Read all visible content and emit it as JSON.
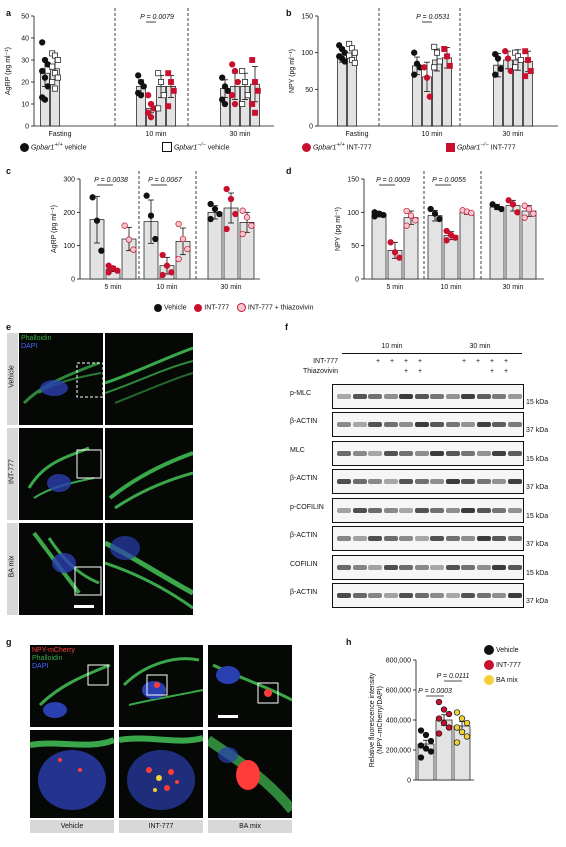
{
  "panels": {
    "a": {
      "label": "a"
    },
    "b": {
      "label": "b"
    },
    "c": {
      "label": "c"
    },
    "d": {
      "label": "d"
    },
    "e": {
      "label": "e"
    },
    "f": {
      "label": "f"
    },
    "g": {
      "label": "g"
    },
    "h": {
      "label": "h"
    }
  },
  "chart_data": [
    {
      "id": "a",
      "type": "bar",
      "ylabel": "AgRP (pg ml⁻¹)",
      "ylim": [
        0,
        50
      ],
      "yticks": [
        0,
        10,
        20,
        30,
        40,
        50
      ],
      "groups": [
        "Fasting",
        "10 min",
        "30 min"
      ],
      "series_names": [
        "Gpbar1+/+ vehicle",
        "Gpbar1−/− vehicle",
        "Gpbar1+/+ INT-777",
        "Gpbar1−/− INT-777"
      ],
      "bars": [
        {
          "g": 0,
          "s": 0,
          "v": 24,
          "err": 6,
          "pts": [
            38,
            30,
            28,
            25,
            22,
            18,
            13,
            12
          ]
        },
        {
          "g": 0,
          "s": 1,
          "v": 26,
          "err": 5,
          "pts": [
            33,
            32,
            30,
            27,
            24,
            22,
            20,
            17
          ]
        },
        {
          "g": 1,
          "s": 0,
          "v": 18,
          "err": 3,
          "pts": [
            23,
            20,
            18,
            15,
            14
          ]
        },
        {
          "g": 1,
          "s": 2,
          "v": 8,
          "err": 2,
          "pts": [
            14,
            10,
            8,
            6,
            4
          ]
        },
        {
          "g": 1,
          "s": 1,
          "v": 18,
          "err": 5,
          "pts": [
            24,
            20,
            14,
            8
          ]
        },
        {
          "g": 1,
          "s": 3,
          "v": 18,
          "err": 5,
          "pts": [
            24,
            20,
            16,
            9
          ]
        },
        {
          "g": 2,
          "s": 0,
          "v": 17,
          "err": 4,
          "pts": [
            22,
            18,
            16,
            12,
            10
          ]
        },
        {
          "g": 2,
          "s": 2,
          "v": 18,
          "err": 6,
          "pts": [
            28,
            25,
            20,
            14,
            10
          ]
        },
        {
          "g": 2,
          "s": 1,
          "v": 18,
          "err": 6,
          "pts": [
            25,
            20,
            14,
            10
          ]
        },
        {
          "g": 2,
          "s": 3,
          "v": 19,
          "err": 8,
          "pts": [
            30,
            20,
            16,
            10,
            6
          ]
        }
      ],
      "pvalues": [
        {
          "text": "P = 0.0079",
          "g": 1
        }
      ]
    },
    {
      "id": "b",
      "type": "bar",
      "ylabel": "NPY (pg ml⁻¹)",
      "ylim": [
        0,
        150
      ],
      "yticks": [
        0,
        50,
        100,
        150
      ],
      "groups": [
        "Fasting",
        "10 min",
        "30 min"
      ],
      "bars": [
        {
          "g": 0,
          "s": 0,
          "v": 97,
          "err": 10,
          "pts": [
            110,
            105,
            100,
            95,
            92,
            88
          ]
        },
        {
          "g": 0,
          "s": 1,
          "v": 98,
          "err": 8,
          "pts": [
            112,
            106,
            100,
            96,
            90,
            86
          ]
        },
        {
          "g": 1,
          "s": 0,
          "v": 82,
          "err": 12,
          "pts": [
            100,
            85,
            80,
            70
          ]
        },
        {
          "g": 1,
          "s": 2,
          "v": 67,
          "err": 20,
          "pts": [
            80,
            66,
            40
          ]
        },
        {
          "g": 1,
          "s": 1,
          "v": 90,
          "err": 15,
          "pts": [
            108,
            100,
            88,
            80
          ]
        },
        {
          "g": 1,
          "s": 3,
          "v": 93,
          "err": 14,
          "pts": [
            105,
            95,
            82
          ]
        },
        {
          "g": 2,
          "s": 0,
          "v": 83,
          "err": 16,
          "pts": [
            98,
            92,
            78,
            70
          ]
        },
        {
          "g": 2,
          "s": 2,
          "v": 90,
          "err": 12,
          "pts": [
            102,
            92,
            75
          ]
        },
        {
          "g": 2,
          "s": 1,
          "v": 90,
          "err": 14,
          "pts": [
            100,
            95,
            90,
            80
          ]
        },
        {
          "g": 2,
          "s": 3,
          "v": 88,
          "err": 14,
          "pts": [
            102,
            90,
            75,
            68
          ]
        }
      ],
      "pvalues": [
        {
          "text": "P = 0.0531",
          "g": 1
        }
      ]
    },
    {
      "id": "c",
      "type": "bar",
      "ylabel": "AgRP (pg ml⁻¹)",
      "ylim": [
        0,
        300
      ],
      "yticks": [
        0,
        100,
        200,
        300
      ],
      "groups": [
        "5 min",
        "10 min",
        "30 min"
      ],
      "series_names": [
        "Vehicle",
        "INT-777",
        "INT-777 + thiazovivin"
      ],
      "bars": [
        {
          "g": 0,
          "s": 0,
          "v": 178,
          "err": 70,
          "pts": [
            245,
            175,
            85
          ]
        },
        {
          "g": 0,
          "s": 1,
          "v": 30,
          "err": 8,
          "pts": [
            40,
            32,
            25,
            20
          ]
        },
        {
          "g": 0,
          "s": 2,
          "v": 120,
          "err": 35,
          "pts": [
            160,
            118,
            88
          ]
        },
        {
          "g": 1,
          "s": 0,
          "v": 172,
          "err": 65,
          "pts": [
            250,
            190,
            120
          ]
        },
        {
          "g": 1,
          "s": 1,
          "v": 40,
          "err": 25,
          "pts": [
            72,
            40,
            20,
            12
          ]
        },
        {
          "g": 1,
          "s": 2,
          "v": 113,
          "err": 40,
          "pts": [
            165,
            120,
            90,
            60
          ]
        },
        {
          "g": 2,
          "s": 0,
          "v": 200,
          "err": 20,
          "pts": [
            225,
            210,
            195,
            180
          ]
        },
        {
          "g": 2,
          "s": 1,
          "v": 213,
          "err": 45,
          "pts": [
            270,
            240,
            195,
            150
          ]
        },
        {
          "g": 2,
          "s": 2,
          "v": 170,
          "err": 30,
          "pts": [
            205,
            185,
            160,
            135
          ]
        }
      ],
      "pvalues": [
        {
          "text": "P = 0.0038",
          "g": 0
        },
        {
          "text": "P = 0.0067",
          "g": 1
        }
      ]
    },
    {
      "id": "d",
      "type": "bar",
      "ylabel": "NPY (pg ml⁻¹)",
      "ylim": [
        0,
        150
      ],
      "yticks": [
        0,
        50,
        100,
        150
      ],
      "groups": [
        "5 min",
        "10 min",
        "30 min"
      ],
      "bars": [
        {
          "g": 0,
          "s": 0,
          "v": 97,
          "err": 4,
          "pts": [
            100,
            98,
            96,
            94
          ]
        },
        {
          "g": 0,
          "s": 1,
          "v": 43,
          "err": 12,
          "pts": [
            55,
            40,
            32
          ]
        },
        {
          "g": 0,
          "s": 2,
          "v": 92,
          "err": 10,
          "pts": [
            102,
            95,
            88,
            80
          ]
        },
        {
          "g": 1,
          "s": 0,
          "v": 95,
          "err": 8,
          "pts": [
            105,
            98,
            90
          ]
        },
        {
          "g": 1,
          "s": 1,
          "v": 65,
          "err": 6,
          "pts": [
            72,
            66,
            62,
            58
          ]
        },
        {
          "g": 1,
          "s": 2,
          "v": 100,
          "err": 3,
          "pts": [
            103,
            101,
            99
          ]
        },
        {
          "g": 2,
          "s": 0,
          "v": 108,
          "err": 4,
          "pts": [
            112,
            108,
            105
          ]
        },
        {
          "g": 2,
          "s": 1,
          "v": 110,
          "err": 8,
          "pts": [
            118,
            112,
            100
          ]
        },
        {
          "g": 2,
          "s": 2,
          "v": 102,
          "err": 8,
          "pts": [
            110,
            105,
            98,
            92
          ]
        }
      ],
      "pvalues": [
        {
          "text": "P = 0.0009",
          "g": 0
        },
        {
          "text": "P = 0.0055",
          "g": 1
        }
      ]
    },
    {
      "id": "h",
      "type": "bar",
      "ylabel": "Relative fluorescence intensity\n(NPY–mCherry/DAPI)",
      "ylim": [
        0,
        800000
      ],
      "yticks": [
        0,
        200000,
        400000,
        600000,
        800000
      ],
      "yticklabels": [
        "0",
        "200,000",
        "400,000",
        "600,000",
        "800,000"
      ],
      "categories": [
        "Vehicle",
        "INT-777",
        "BA mix"
      ],
      "bars": [
        {
          "g": 0,
          "s": 0,
          "v": 240000,
          "err": 25000,
          "pts": [
            330000,
            300000,
            260000,
            230000,
            210000,
            190000,
            150000
          ]
        },
        {
          "g": 1,
          "s": 1,
          "v": 400000,
          "err": 35000,
          "pts": [
            520000,
            470000,
            440000,
            410000,
            380000,
            350000,
            310000
          ]
        },
        {
          "g": 2,
          "s": 2,
          "v": 360000,
          "err": 30000,
          "pts": [
            450000,
            410000,
            380000,
            350000,
            320000,
            290000,
            250000
          ]
        }
      ],
      "pvalues": [
        {
          "text": "P = 0.0111"
        },
        {
          "text": "P = 0.0003"
        }
      ]
    }
  ],
  "legend_ab": {
    "items": [
      {
        "prefix": "Gpbar1",
        "sup": "+/+",
        "rest": " vehicle"
      },
      {
        "prefix": "Gpbar1",
        "sup": "−/−",
        "rest": " vehicle"
      },
      {
        "prefix": "Gpbar1",
        "sup": "+/+",
        "rest": " INT-777"
      },
      {
        "prefix": "Gpbar1",
        "sup": "−/−",
        "rest": " INT-777"
      }
    ]
  },
  "legend_cd": {
    "items": [
      "Vehicle",
      "INT-777",
      "INT-777 + thiazovivin"
    ]
  },
  "legend_h": {
    "items": [
      "Vehicle",
      "INT-777",
      "BA mix"
    ]
  },
  "panel_e": {
    "stain1": "Phalloidin",
    "stain2": "DAPI",
    "rows": [
      "Vehicle",
      "INT-777",
      "BA mix"
    ]
  },
  "panel_f": {
    "time1": "10 min",
    "time2": "30 min",
    "row_int": "INT-777",
    "row_thz": "Thiazovivin",
    "int_marks": [
      "+",
      "+",
      "+",
      "+",
      "+",
      "+",
      "+",
      "+"
    ],
    "thz_marks": [
      "+",
      "+",
      "+",
      "+"
    ],
    "blots": [
      {
        "name": "p-MLC",
        "kda": "15 kDa"
      },
      {
        "name": "β-ACTIN",
        "kda": "37 kDa"
      },
      {
        "name": "MLC",
        "kda": "15 kDa"
      },
      {
        "name": "β-ACTIN",
        "kda": "37 kDa"
      },
      {
        "name": "p-COFILIN",
        "kda": "15 kDa"
      },
      {
        "name": "β-ACTIN",
        "kda": "37 kDa"
      },
      {
        "name": "COFILIN",
        "kda": "15 kDa"
      },
      {
        "name": "β-ACTIN",
        "kda": "37 kDa"
      }
    ]
  },
  "panel_g": {
    "stain1": "NPY-mCherry",
    "stain2": "Phalloidin",
    "stain3": "DAPI",
    "columns": [
      "Vehicle",
      "INT-777",
      "BA mix"
    ]
  },
  "colors": {
    "black": "#111111",
    "red": "#c8102e",
    "pink": "#f4c7cf",
    "yellow": "#f2d233",
    "bar": "#e3e3e3",
    "phalloidin": "#3aa84a",
    "dapi": "#2a3fb0"
  }
}
